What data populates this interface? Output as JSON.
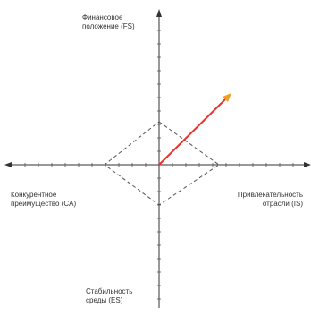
{
  "axes": {
    "fs": "Финансовое\nположение (FS)",
    "ca": "Конкурентное\nпреимущество (CA)",
    "is": "Привлекательность\nотрасли (IS)",
    "es": "Стабильность\nсреды (ES)"
  },
  "colors": {
    "axis": "#333333",
    "polygon": "#555555",
    "vector": "#e8322a",
    "arrowhead": "#f0a020"
  }
}
